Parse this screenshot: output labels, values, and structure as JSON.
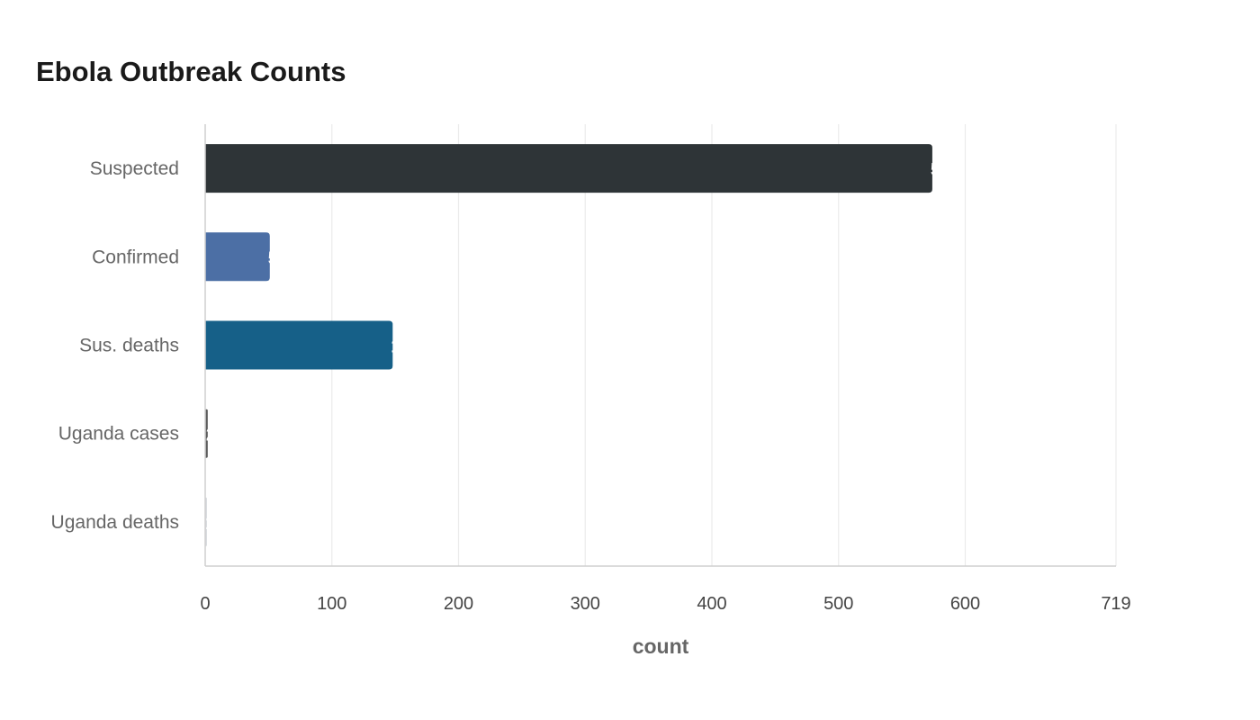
{
  "chart_data": {
    "type": "bar",
    "orientation": "horizontal",
    "title": "Ebola Outbreak Counts",
    "xlabel": "count",
    "ylabel": "",
    "categories": [
      "Suspected",
      "Confirmed",
      "Sus. deaths",
      "Uganda cases",
      "Uganda deaths"
    ],
    "values": [
      574,
      51,
      148,
      2,
      1
    ],
    "data_labels": [
      "574",
      "51",
      "148",
      "2",
      "1"
    ],
    "colors": [
      "#2e3437",
      "#4c6fa5",
      "#166088",
      "#5a5a5a",
      "#d9dde0"
    ],
    "xlim": [
      0,
      719
    ],
    "xticks": [
      0,
      100,
      200,
      300,
      400,
      500,
      600,
      719
    ],
    "grid": true,
    "legend": "none"
  }
}
